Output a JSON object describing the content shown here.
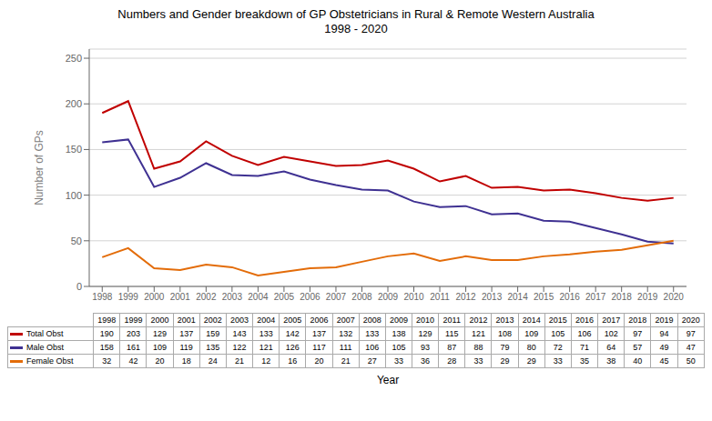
{
  "chart_data": {
    "type": "line",
    "title": "Numbers and Gender breakdown of GP Obstetricians in Rural & Remote Western Australia\n1998 - 2020",
    "x_label": "Year",
    "y_label": "Number of GPs",
    "x": [
      1998,
      1999,
      2000,
      2001,
      2002,
      2003,
      2004,
      2005,
      2006,
      2007,
      2008,
      2009,
      2010,
      2011,
      2012,
      2013,
      2014,
      2015,
      2016,
      2017,
      2018,
      2019,
      2020
    ],
    "series": [
      {
        "name": "Total Obst",
        "color": "#c00000",
        "values": [
          190,
          203,
          129,
          137,
          159,
          143,
          133,
          142,
          137,
          132,
          133,
          138,
          129,
          115,
          121,
          108,
          109,
          105,
          106,
          102,
          97,
          94,
          97
        ]
      },
      {
        "name": "Male Obst",
        "color": "#3f3192",
        "values": [
          158,
          161,
          109,
          119,
          135,
          122,
          121,
          126,
          117,
          111,
          106,
          105,
          93,
          87,
          88,
          79,
          80,
          72,
          71,
          64,
          57,
          49,
          47
        ]
      },
      {
        "name": "Female Obst",
        "color": "#e36c09",
        "values": [
          32,
          42,
          20,
          18,
          24,
          21,
          12,
          16,
          20,
          21,
          27,
          33,
          36,
          28,
          33,
          29,
          29,
          33,
          35,
          38,
          40,
          45,
          50
        ]
      }
    ],
    "xlim": [
      1997.5,
      2020.5
    ],
    "xticks": [
      1998,
      1999,
      2000,
      2001,
      2002,
      2003,
      2004,
      2005,
      2006,
      2007,
      2008,
      2009,
      2010,
      2011,
      2012,
      2013,
      2014,
      2015,
      2016,
      2017,
      2018,
      2019,
      2020
    ],
    "ylim": [
      0,
      260
    ],
    "yticks": [
      0,
      50,
      100,
      150,
      200,
      250
    ],
    "grid": true,
    "legend": "bottom",
    "data_labels": true
  }
}
